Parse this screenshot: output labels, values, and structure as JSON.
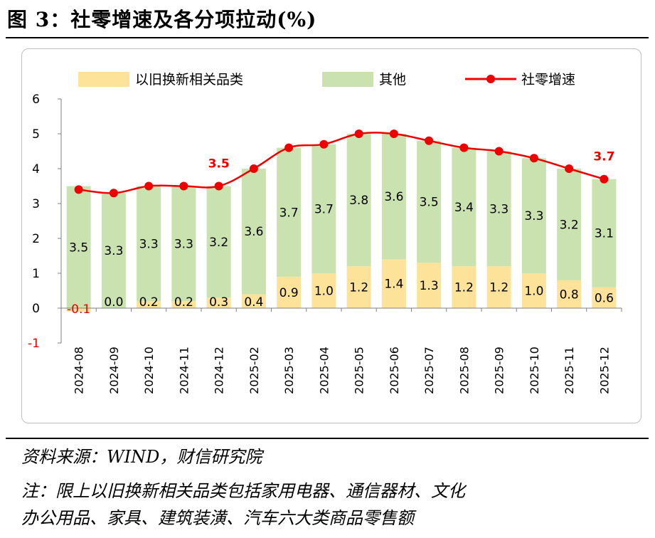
{
  "header": {
    "title": "图 3：社零增速及各分项拉动(%)"
  },
  "footer": {
    "source": "资料来源：WIND，财信研究院",
    "note_line1": "注：限上以旧换新相关品类包括家用电器、通信器材、文化",
    "note_line2": "办公用品、家具、建筑装潢、汽车六大类商品零售额"
  },
  "colors": {
    "trade_in": "#fde39a",
    "other": "#c9e2b0",
    "total": "#ee0000",
    "axis": "#7f7f7f"
  },
  "chart_data": {
    "type": "bar",
    "stacked": true,
    "title": "社零增速及各分项拉动(%)",
    "categories": [
      "2024-08",
      "2024-09",
      "2024-10",
      "2024-11",
      "2024-12",
      "2025-02",
      "2025-03",
      "2025-04",
      "2025-05",
      "2025-06",
      "2025-07",
      "2025-08",
      "2025-09",
      "2025-10",
      "2025-11",
      "2025-12"
    ],
    "series": [
      {
        "name": "以旧换新相关品类",
        "kind": "bar",
        "values": [
          -0.1,
          0.0,
          0.2,
          0.2,
          0.3,
          0.4,
          0.9,
          1.0,
          1.2,
          1.4,
          1.3,
          1.2,
          1.2,
          1.0,
          0.8,
          0.6
        ],
        "labels": [
          "-0.1",
          "0.0",
          "0.2",
          "0.2",
          "0.3",
          "0.4",
          "0.9",
          "1.0",
          "1.2",
          "1.4",
          "1.3",
          "1.2",
          "1.2",
          "1.0",
          "0.8",
          "0.6"
        ]
      },
      {
        "name": "其他",
        "kind": "bar",
        "values": [
          3.5,
          3.3,
          3.3,
          3.3,
          3.2,
          3.6,
          3.7,
          3.7,
          3.8,
          3.6,
          3.5,
          3.4,
          3.3,
          3.3,
          3.2,
          3.1
        ],
        "labels": [
          "3.5",
          "3.3",
          "3.3",
          "3.3",
          "3.2",
          "3.6",
          "3.7",
          "3.7",
          "3.8",
          "3.6",
          "3.5",
          "3.4",
          "3.3",
          "3.3",
          "3.2",
          "3.1"
        ]
      },
      {
        "name": "社零增速",
        "kind": "line",
        "values": [
          3.4,
          3.3,
          3.5,
          3.5,
          3.5,
          4.0,
          4.6,
          4.7,
          5.0,
          5.0,
          4.8,
          4.6,
          4.5,
          4.3,
          4.0,
          3.7
        ]
      }
    ],
    "annotations": [
      {
        "category": "2024-12",
        "text": "3.5"
      },
      {
        "category": "2025-12",
        "text": "3.7"
      }
    ],
    "yticks": [
      "6",
      "5",
      "4",
      "3",
      "2",
      "1",
      "0",
      "-1"
    ],
    "ylim": [
      -1,
      6
    ],
    "xlabel": "",
    "ylabel": "",
    "legend_position": "top",
    "grid": false
  }
}
